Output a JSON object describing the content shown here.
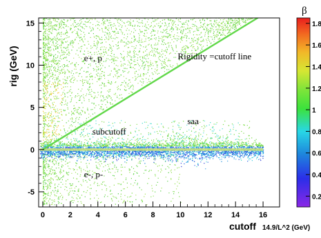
{
  "chart_data": {
    "type": "heatmap",
    "xlabel": "cutoff",
    "xunit": "14.9/L^2 (GeV)",
    "ylabel": "rig (GeV)",
    "xlim": [
      -0.3,
      17.2
    ],
    "ylim": [
      -6.8,
      15.6
    ],
    "x_ticks": [
      0,
      2,
      4,
      6,
      8,
      10,
      12,
      14,
      16
    ],
    "y_ticks": [
      -5,
      0,
      5,
      10,
      15
    ],
    "colorbar": {
      "label": "β",
      "range": [
        0.1,
        1.85
      ],
      "ticks": [
        0.2,
        0.4,
        0.6,
        0.8,
        1,
        1.2,
        1.4,
        1.6,
        1.8
      ]
    },
    "cutoff_line": {
      "from": [
        0,
        0
      ],
      "to": [
        16,
        16
      ]
    },
    "annotations": [
      {
        "text": "e+,  p",
        "x": 3.0,
        "y": 10.5
      },
      {
        "text": "Rigidity =cutoff line",
        "x": 9.8,
        "y": 10.7
      },
      {
        "text": "subcutoff",
        "x": 3.6,
        "y": 1.8
      },
      {
        "text": "saa",
        "x": 10.5,
        "y": 3.0
      },
      {
        "text": "e-, p-",
        "x": 3.0,
        "y": -3.3
      }
    ]
  }
}
